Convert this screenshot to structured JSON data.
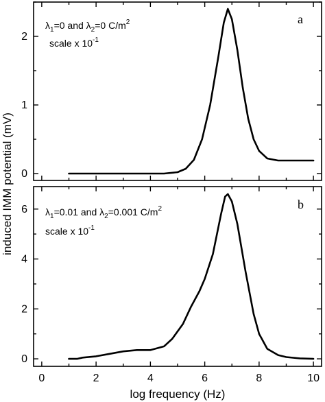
{
  "chart_data": {
    "type": "line",
    "ylabel": "induced IMM potential (mV)",
    "xlabel": "log frequency (Hz)",
    "xlim": [
      -0.3,
      10.3
    ],
    "x_ticks": [
      "0",
      "2",
      "4",
      "6",
      "8",
      "10"
    ],
    "legend": "none",
    "grid": false,
    "panels": [
      {
        "letter": "a",
        "annotation_line1": {
          "lambda": "λ",
          "sub1": "1",
          "mid": "=0 and ",
          "lambda2": "λ",
          "sub2": "2",
          "tail": "=0 C/m",
          "sup": "2"
        },
        "annotation_line2": {
          "text": "scale x 10",
          "sup": "-1"
        },
        "ylim": [
          -0.1,
          2.5
        ],
        "y_ticks": [
          "0",
          "1",
          "2"
        ],
        "x": [
          1.0,
          2.0,
          3.0,
          4.0,
          4.5,
          5.0,
          5.3,
          5.6,
          5.9,
          6.2,
          6.5,
          6.7,
          6.85,
          7.0,
          7.2,
          7.4,
          7.6,
          7.8,
          8.0,
          8.3,
          8.7,
          9.0,
          9.5,
          10.0
        ],
        "y": [
          0.0,
          0.0,
          0.0,
          0.0,
          0.0,
          0.02,
          0.07,
          0.2,
          0.5,
          1.0,
          1.7,
          2.2,
          2.4,
          2.25,
          1.8,
          1.25,
          0.8,
          0.5,
          0.33,
          0.22,
          0.19,
          0.19,
          0.19,
          0.19
        ]
      },
      {
        "letter": "b",
        "annotation_line1": {
          "lambda": "λ",
          "sub1": "1",
          "mid": "=0.01 and ",
          "lambda2": "λ",
          "sub2": "2",
          "tail": "=0.001 C/m",
          "sup": "2"
        },
        "annotation_line2": {
          "text": "scale x 10",
          "sup": "-1"
        },
        "ylim": [
          -0.3,
          6.9
        ],
        "y_ticks": [
          "0",
          "2",
          "4",
          "6"
        ],
        "x": [
          1.0,
          1.3,
          1.5,
          2.0,
          2.5,
          3.0,
          3.5,
          4.0,
          4.5,
          4.8,
          5.2,
          5.5,
          5.8,
          6.0,
          6.3,
          6.6,
          6.75,
          6.85,
          7.0,
          7.2,
          7.5,
          7.8,
          8.0,
          8.3,
          8.7,
          9.0,
          9.5,
          10.0
        ],
        "y": [
          0.0,
          0.0,
          0.05,
          0.1,
          0.2,
          0.3,
          0.35,
          0.35,
          0.5,
          0.8,
          1.4,
          2.1,
          2.7,
          3.2,
          4.2,
          5.8,
          6.5,
          6.6,
          6.3,
          5.4,
          3.5,
          1.8,
          1.0,
          0.4,
          0.15,
          0.07,
          0.02,
          0.0
        ]
      }
    ]
  }
}
